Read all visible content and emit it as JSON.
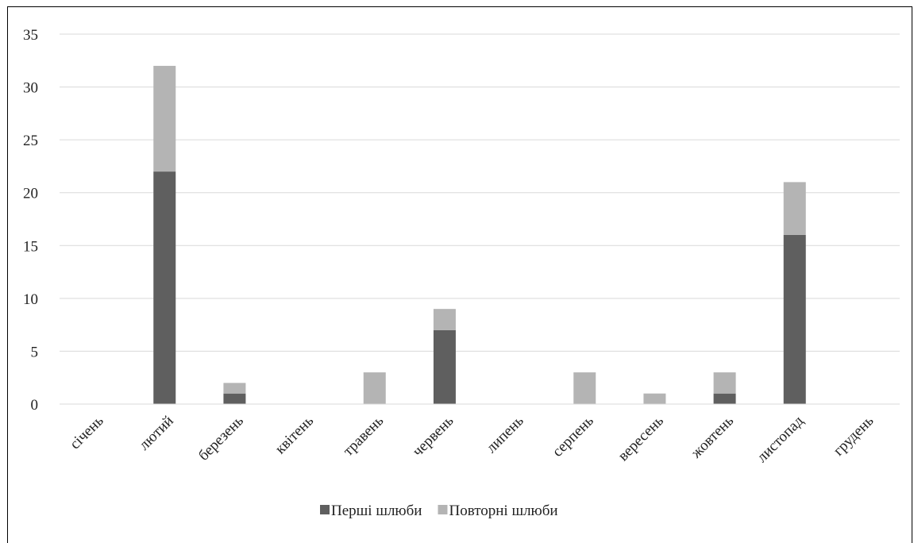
{
  "chart_data": {
    "type": "bar",
    "stacked": true,
    "categories": [
      "січень",
      "лютий",
      "березень",
      "квітень",
      "травень",
      "червень",
      "липень",
      "серпень",
      "вересень",
      "жовтень",
      "листопад",
      "грудень"
    ],
    "series": [
      {
        "name": "Перші шлюби",
        "color": "#5f5f5f",
        "values": [
          0,
          22,
          1,
          0,
          0,
          7,
          0,
          0,
          0,
          1,
          16,
          0
        ]
      },
      {
        "name": "Повторні шлюби",
        "color": "#b4b4b4",
        "values": [
          0,
          10,
          1,
          0,
          3,
          2,
          0,
          3,
          1,
          2,
          5,
          0
        ]
      }
    ],
    "ylim": [
      0,
      35
    ],
    "yticks": [
      0,
      5,
      10,
      15,
      20,
      25,
      30,
      35
    ],
    "grid": true,
    "legend_position": "bottom",
    "title": "",
    "xlabel": "",
    "ylabel": ""
  }
}
